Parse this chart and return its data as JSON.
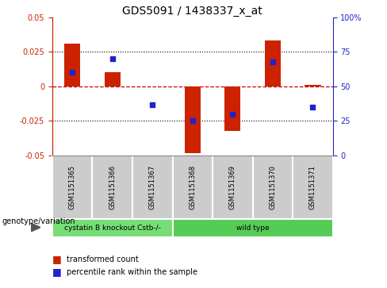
{
  "title": "GDS5091 / 1438337_x_at",
  "samples": [
    "GSM1151365",
    "GSM1151366",
    "GSM1151367",
    "GSM1151368",
    "GSM1151369",
    "GSM1151370",
    "GSM1151371"
  ],
  "bar_values": [
    0.031,
    0.01,
    0.0,
    -0.048,
    -0.032,
    0.033,
    0.001
  ],
  "dot_pct": [
    60,
    70,
    37,
    25,
    30,
    68,
    35
  ],
  "ylim": [
    -0.05,
    0.05
  ],
  "yticks_left": [
    -0.05,
    -0.025,
    0,
    0.025,
    0.05
  ],
  "yticks_right": [
    0,
    25,
    50,
    75,
    100
  ],
  "bar_color": "#cc2200",
  "dot_color": "#2222cc",
  "zero_line_color": "#cc0000",
  "grid_color": "#000000",
  "groups": [
    {
      "label": "cystatin B knockout Cstb-/-",
      "samples": [
        0,
        1,
        2
      ],
      "color": "#77dd77"
    },
    {
      "label": "wild type",
      "samples": [
        3,
        4,
        5,
        6
      ],
      "color": "#55cc55"
    }
  ],
  "group_label": "genotype/variation",
  "legend_bar": "transformed count",
  "legend_dot": "percentile rank within the sample",
  "plot_bg": "#ffffff",
  "left_axis_color": "#cc2200",
  "right_axis_color": "#2222cc",
  "sample_box_color": "#cccccc",
  "bar_width": 0.4
}
